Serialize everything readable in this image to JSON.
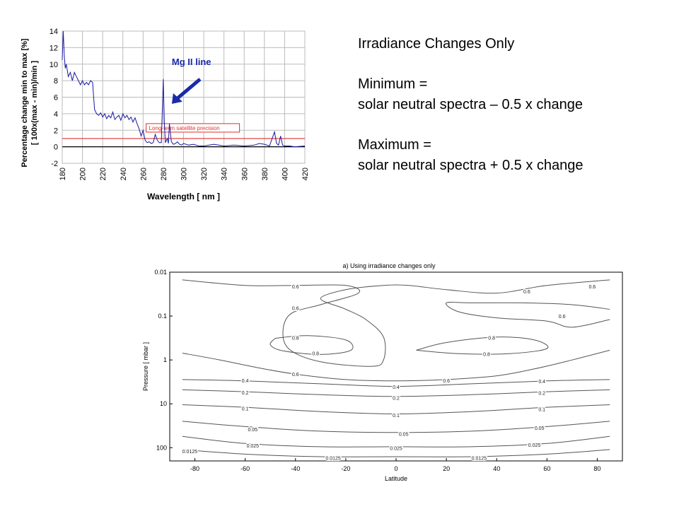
{
  "text_block": {
    "title": "Irradiance Changes Only",
    "min_label": "Minimum =",
    "min_formula": "solar neutral spectra – 0.5 x change",
    "max_label": "Maximum =",
    "max_formula": "solar neutral spectra + 0.5 x change"
  },
  "chart_data": [
    {
      "type": "line",
      "xlabel": "Wavelength [ nm ]",
      "ylabel": "Percentage change min to max [%]",
      "ylabel2": "[ 100x(max - min)/min ]",
      "xlim": [
        180,
        420
      ],
      "ylim": [
        -2,
        14
      ],
      "x_ticks": [
        180,
        200,
        220,
        240,
        260,
        280,
        300,
        320,
        340,
        360,
        380,
        400,
        420
      ],
      "y_ticks": [
        -2,
        0,
        2,
        4,
        6,
        8,
        10,
        12,
        14
      ],
      "grid": true,
      "colors": {
        "series": "#1a1aa0",
        "precision": "#e03030",
        "callout": "#1a2aa8"
      },
      "series": [
        {
          "x": [
            180,
            181,
            182,
            183,
            184,
            186,
            188,
            190,
            192,
            194,
            196,
            198,
            200,
            202,
            204,
            206,
            208,
            210,
            212,
            214,
            216,
            218,
            220,
            222,
            224,
            226,
            228,
            230,
            232,
            234,
            236,
            238,
            240,
            242,
            244,
            246,
            248,
            250,
            252,
            254,
            256,
            258,
            260,
            262,
            264,
            266,
            268,
            270,
            272,
            274,
            276,
            278,
            279,
            280,
            281,
            282,
            284,
            285,
            286,
            288,
            290,
            292,
            294,
            296,
            298,
            300,
            305,
            310,
            315,
            320,
            330,
            340,
            350,
            360,
            370,
            375,
            380,
            385,
            390,
            392,
            394,
            396,
            398,
            400,
            405,
            410,
            420
          ],
          "y": [
            10.5,
            14.0,
            11.0,
            9.5,
            10.0,
            8.5,
            9.0,
            8.0,
            9.0,
            8.5,
            8.0,
            7.5,
            8.0,
            7.5,
            7.8,
            7.5,
            8.0,
            7.8,
            4.5,
            4.0,
            3.8,
            4.1,
            3.6,
            4.0,
            3.4,
            3.8,
            3.5,
            4.2,
            3.3,
            3.6,
            3.8,
            3.2,
            4.0,
            3.5,
            3.8,
            3.3,
            3.6,
            3.0,
            3.5,
            2.8,
            2.2,
            1.3,
            2.0,
            0.8,
            0.5,
            0.6,
            0.4,
            0.5,
            1.5,
            0.8,
            0.5,
            0.5,
            4.5,
            8.2,
            3.0,
            0.5,
            1.0,
            0.4,
            2.8,
            0.6,
            0.3,
            0.4,
            0.6,
            0.3,
            0.2,
            0.4,
            0.2,
            0.3,
            0.1,
            0.1,
            0.3,
            0.1,
            0.2,
            0.1,
            0.2,
            0.4,
            0.3,
            0.1,
            1.8,
            0.4,
            0.2,
            1.3,
            0.2,
            0.1,
            0.1,
            0.0,
            0.1
          ]
        }
      ],
      "reference_line": {
        "y": 1,
        "label": "Long-term satellite precision"
      },
      "annotation": {
        "label": "Mg II line",
        "x": 280
      }
    },
    {
      "type": "contour",
      "title": "a) Using irradiance changes only",
      "xlabel": "Latitude",
      "ylabel": "Pressure [ mbar ]",
      "xlim": [
        -90,
        90
      ],
      "ylim": [
        0.01,
        200
      ],
      "y_scale": "log",
      "y_reversed": true,
      "x_ticks": [
        -80,
        -60,
        -40,
        -20,
        0,
        20,
        40,
        60,
        80
      ],
      "y_ticks": [
        0.01,
        0.1,
        1,
        10,
        100
      ],
      "y_tick_labels": [
        "0.01",
        "0.1",
        "1",
        "10",
        "100"
      ],
      "levels": [
        {
          "value": 0.0125,
          "label": "0.0125",
          "line": [
            [
              -85,
              110
            ],
            [
              -60,
              140
            ],
            [
              -30,
              160
            ],
            [
              0,
              160
            ],
            [
              30,
              160
            ],
            [
              60,
              140
            ],
            [
              85,
              110
            ]
          ],
          "labels_at": [
            [
              -82,
              118
            ],
            [
              -25,
              170
            ],
            [
              33,
              170
            ]
          ]
        },
        {
          "value": 0.025,
          "label": "0.025",
          "line": [
            [
              -85,
              55
            ],
            [
              -60,
              80
            ],
            [
              -30,
              95
            ],
            [
              0,
              95
            ],
            [
              30,
              95
            ],
            [
              60,
              80
            ],
            [
              85,
              55
            ]
          ],
          "labels_at": [
            [
              -57,
              88
            ],
            [
              0,
              100
            ],
            [
              55,
              85
            ]
          ]
        },
        {
          "value": 0.05,
          "label": "0.05",
          "line": [
            [
              -85,
              25
            ],
            [
              -60,
              33
            ],
            [
              -30,
              42
            ],
            [
              0,
              45
            ],
            [
              30,
              42
            ],
            [
              60,
              33
            ],
            [
              85,
              25
            ]
          ],
          "labels_at": [
            [
              -57,
              38
            ],
            [
              3,
              48
            ],
            [
              57,
              35
            ]
          ]
        },
        {
          "value": 0.1,
          "label": "0.1",
          "line": [
            [
              -85,
              10.5
            ],
            [
              -60,
              12
            ],
            [
              -30,
              15
            ],
            [
              0,
              17
            ],
            [
              30,
              15
            ],
            [
              60,
              12
            ],
            [
              85,
              10.5
            ]
          ],
          "labels_at": [
            [
              -60,
              12.5
            ],
            [
              0,
              18
            ],
            [
              58,
              13
            ]
          ]
        },
        {
          "value": 0.2,
          "label": "0.2",
          "line": [
            [
              -85,
              4.8
            ],
            [
              -60,
              5.3
            ],
            [
              -30,
              6.2
            ],
            [
              0,
              6.8
            ],
            [
              30,
              6.2
            ],
            [
              60,
              5.3
            ],
            [
              85,
              4.8
            ]
          ],
          "labels_at": [
            [
              -60,
              5.5
            ],
            [
              0,
              7.2
            ],
            [
              58,
              5.6
            ]
          ]
        },
        {
          "value": 0.4,
          "label": "0.4",
          "line": [
            [
              -85,
              2.8
            ],
            [
              -60,
              3.0
            ],
            [
              -30,
              3.5
            ],
            [
              0,
              4.0
            ],
            [
              30,
              3.5
            ],
            [
              60,
              3.0
            ],
            [
              85,
              2.8
            ]
          ],
          "labels_at": [
            [
              -60,
              2.9
            ],
            [
              0,
              4.1
            ],
            [
              58,
              3.0
            ]
          ]
        },
        {
          "value": 0.6,
          "label": "0.6",
          "line": [
            [
              -85,
              0.7
            ],
            [
              -70,
              1.0
            ],
            [
              -55,
              1.5
            ],
            [
              -40,
              2.1
            ],
            [
              -20,
              2.8
            ],
            [
              0,
              3.0
            ],
            [
              20,
              2.8
            ],
            [
              40,
              2.3
            ],
            [
              55,
              1.6
            ],
            [
              70,
              1.0
            ],
            [
              85,
              0.6
            ]
          ],
          "labels_at": [
            [
              -40,
              2.1
            ],
            [
              20,
              2.9
            ]
          ]
        },
        {
          "value": 0.6,
          "label": "0.6",
          "line": [
            [
              -85,
              0.015
            ],
            [
              -60,
              0.02
            ],
            [
              -40,
              0.02
            ],
            [
              -20,
              0.02
            ],
            [
              -15,
              0.03
            ],
            [
              -30,
              0.055
            ],
            [
              -42,
              0.09
            ],
            [
              -45,
              0.25
            ],
            [
              -42,
              0.6
            ],
            [
              -30,
              1.1
            ],
            [
              -10,
              1.4
            ],
            [
              -5,
              1.0
            ],
            [
              -5,
              0.3
            ],
            [
              -12,
              0.12
            ],
            [
              -20,
              0.07
            ],
            [
              -30,
              0.04
            ],
            [
              -20,
              0.025
            ],
            [
              -5,
              0.02
            ],
            [
              5,
              0.02
            ],
            [
              20,
              0.025
            ],
            [
              40,
              0.03
            ],
            [
              60,
              0.02
            ],
            [
              85,
              0.015
            ]
          ],
          "labels_at": [
            [
              -40,
              0.021
            ],
            [
              -40,
              0.065
            ],
            [
              52,
              0.027
            ],
            [
              78,
              0.021
            ]
          ]
        },
        {
          "value": 0.6,
          "label": "0.6",
          "line": [
            [
              85,
              0.07
            ],
            [
              70,
              0.055
            ],
            [
              50,
              0.05
            ],
            [
              30,
              0.05
            ],
            [
              20,
              0.05
            ],
            [
              25,
              0.08
            ],
            [
              40,
              0.11
            ],
            [
              60,
              0.13
            ],
            [
              70,
              0.18
            ],
            [
              85,
              0.12
            ]
          ],
          "labels_at": [
            [
              66,
              0.1
            ]
          ]
        },
        {
          "value": 0.8,
          "label": "0.8",
          "line": [
            [
              -48,
              0.32
            ],
            [
              -35,
              0.28
            ],
            [
              -20,
              0.35
            ],
            [
              -18,
              0.6
            ],
            [
              -30,
              0.75
            ],
            [
              -45,
              0.62
            ],
            [
              -50,
              0.45
            ],
            [
              -48,
              0.32
            ]
          ],
          "labels_at": [
            [
              -40,
              0.31
            ],
            [
              -32,
              0.7
            ]
          ]
        },
        {
          "value": 0.8,
          "label": "0.8",
          "line": [
            [
              8,
              0.6
            ],
            [
              20,
              0.4
            ],
            [
              40,
              0.3
            ],
            [
              55,
              0.35
            ],
            [
              60,
              0.55
            ],
            [
              45,
              0.72
            ],
            [
              25,
              0.72
            ],
            [
              8,
              0.6
            ]
          ],
          "labels_at": [
            [
              38,
              0.31
            ],
            [
              36,
              0.72
            ]
          ]
        }
      ]
    }
  ]
}
